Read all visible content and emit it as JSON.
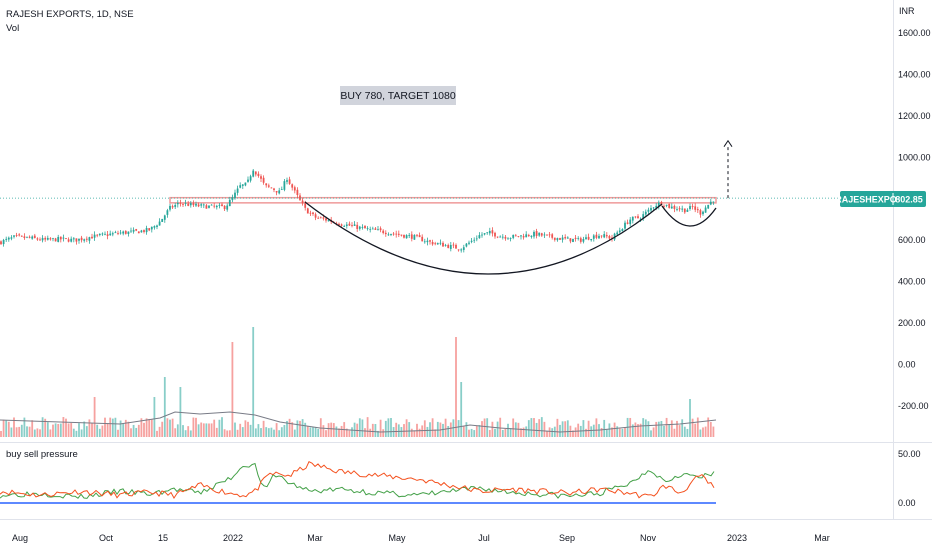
{
  "header": {
    "symbol_line": "RAJESH EXPORTS, 1D, NSE",
    "volume_label": "Vol",
    "currency": "INR"
  },
  "annotation": {
    "text": "BUY 780, TARGET 1080",
    "background": "#d1d4dc"
  },
  "price_badge": {
    "symbol": "RAJESHEXPO",
    "value": "802.85",
    "color": "#26a69a"
  },
  "indicator": {
    "title": "buy sell pressure"
  },
  "colors": {
    "up": "#26a69a",
    "down": "#ef5350",
    "bullish_line": "#43a047",
    "bearish_line": "#f4511e",
    "zero_line": "#2962ff",
    "volume_ma": "#787b86",
    "arc": "#131722",
    "resistance": "#ef9a9a"
  },
  "chart_data": [
    {
      "type": "candlestick",
      "x_ticks": [
        "Aug",
        "Oct",
        "15",
        "2022",
        "Mar",
        "May",
        "Jul",
        "Sep",
        "Nov",
        "2023",
        "Mar"
      ],
      "y_ticks": [
        "1600.00",
        "1400.00",
        "1200.00",
        "1000.00",
        "600.00",
        "400.00",
        "200.00",
        "0.00",
        "-200.00"
      ],
      "ylim": [
        -300,
        1700
      ],
      "last_price": 802.85,
      "resistance_level": 780,
      "target_level": 1080,
      "close_path": [
        [
          0,
          590
        ],
        [
          15,
          615
        ],
        [
          30,
          610
        ],
        [
          45,
          600
        ],
        [
          60,
          605
        ],
        [
          75,
          600
        ],
        [
          90,
          615
        ],
        [
          105,
          625
        ],
        [
          120,
          635
        ],
        [
          135,
          640
        ],
        [
          150,
          650
        ],
        [
          160,
          690
        ],
        [
          170,
          755
        ],
        [
          180,
          780
        ],
        [
          190,
          770
        ],
        [
          200,
          765
        ],
        [
          215,
          760
        ],
        [
          225,
          760
        ],
        [
          232,
          800
        ],
        [
          240,
          860
        ],
        [
          247,
          870
        ],
        [
          253,
          945
        ],
        [
          260,
          900
        ],
        [
          265,
          860
        ],
        [
          272,
          850
        ],
        [
          280,
          830
        ],
        [
          287,
          900
        ],
        [
          295,
          830
        ],
        [
          305,
          750
        ],
        [
          315,
          710
        ],
        [
          325,
          700
        ],
        [
          340,
          680
        ],
        [
          355,
          665
        ],
        [
          370,
          650
        ],
        [
          385,
          640
        ],
        [
          400,
          625
        ],
        [
          415,
          615
        ],
        [
          430,
          590
        ],
        [
          445,
          575
        ],
        [
          460,
          560
        ],
        [
          470,
          590
        ],
        [
          480,
          625
        ],
        [
          490,
          635
        ],
        [
          500,
          620
        ],
        [
          510,
          615
        ],
        [
          520,
          620
        ],
        [
          535,
          630
        ],
        [
          550,
          615
        ],
        [
          565,
          605
        ],
        [
          580,
          600
        ],
        [
          590,
          615
        ],
        [
          600,
          625
        ],
        [
          612,
          610
        ],
        [
          620,
          650
        ],
        [
          630,
          700
        ],
        [
          640,
          710
        ],
        [
          648,
          740
        ],
        [
          655,
          770
        ],
        [
          662,
          780
        ],
        [
          670,
          760
        ],
        [
          677,
          755
        ],
        [
          685,
          745
        ],
        [
          693,
          760
        ],
        [
          700,
          730
        ],
        [
          707,
          765
        ],
        [
          713,
          795
        ],
        [
          716,
          802.85
        ]
      ]
    },
    {
      "type": "bar",
      "name": "Vol",
      "values": []
    },
    {
      "type": "line",
      "title": "buy sell pressure",
      "y_ticks": [
        "50.00",
        "0.00"
      ],
      "ylim": [
        -10,
        60
      ]
    }
  ]
}
